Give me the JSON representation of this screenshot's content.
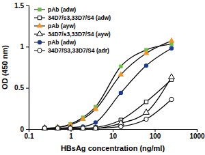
{
  "chart_data": {
    "type": "line",
    "x_label": "HBsAg concentration (ng/ml)",
    "y_label": "OD (450 nm)",
    "log": "x",
    "grid": false,
    "legend": "top-left",
    "xlim": [
      0.1,
      1000
    ],
    "ylim": [
      0,
      1.5
    ],
    "xticks": [
      0.1,
      1,
      10,
      100,
      1000
    ],
    "yticks": [
      0,
      0.5,
      1,
      1.5
    ],
    "x": [
      0.24,
      0.49,
      0.98,
      1.95,
      3.9,
      15.6,
      62.5,
      250
    ],
    "series": [
      {
        "name": "pAb (adw)",
        "color": "#6abf45",
        "marker": "square",
        "values": [
          0.01,
          0.02,
          0.06,
          0.14,
          0.27,
          0.76,
          0.96,
          1.03
        ]
      },
      {
        "name": "34D7/s3,33D7/S4 (adw)",
        "color": "#000000",
        "marker": "square-open",
        "values": [
          0.01,
          0.01,
          0.01,
          0.01,
          0.02,
          0.11,
          0.33,
          0.6
        ]
      },
      {
        "name": "pAb (ayw)",
        "color": "#f39422",
        "marker": "triangle",
        "values": [
          0.01,
          0.02,
          0.05,
          0.12,
          0.24,
          0.66,
          0.92,
          1.07
        ]
      },
      {
        "name": "34D7/s3,33D7/S4 (ayw)",
        "color": "#000000",
        "marker": "triangle-open",
        "values": [
          0.01,
          0.01,
          0.01,
          0.01,
          0.01,
          0.07,
          0.2,
          0.63
        ]
      },
      {
        "name": "pAb (adw)",
        "color": "#1b3c8f",
        "marker": "circle",
        "values": [
          0.01,
          0.01,
          0.02,
          0.03,
          0.08,
          0.44,
          0.77,
          0.98
        ]
      },
      {
        "name": "34D7/S3,33D7/S4 (adr)",
        "color": "#000000",
        "marker": "circle-open",
        "values": [
          0.01,
          0.01,
          0.01,
          0.01,
          0.01,
          0.03,
          0.12,
          0.36
        ]
      }
    ]
  }
}
